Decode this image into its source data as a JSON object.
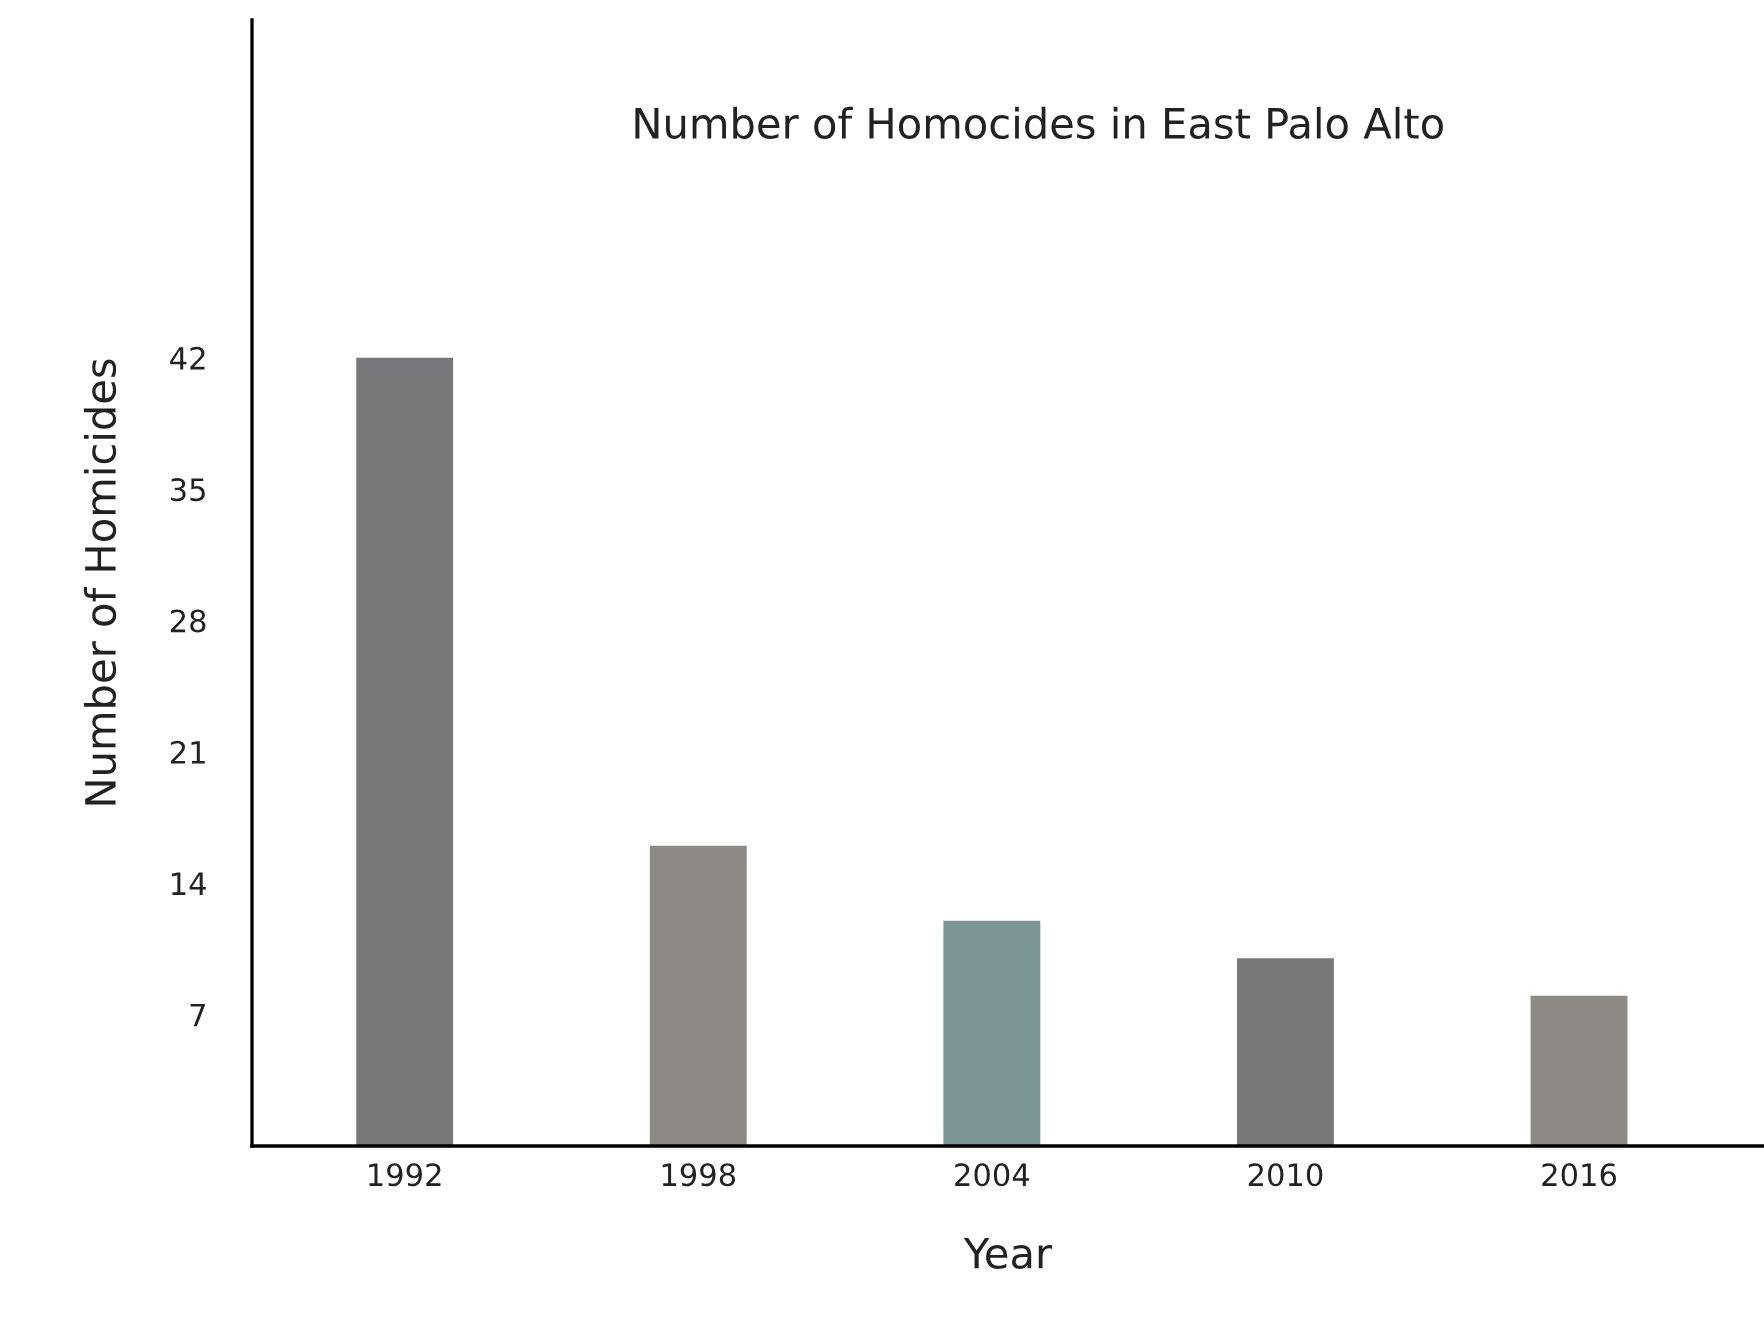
{
  "chart_data": {
    "type": "bar",
    "title": "Number of Homocides in East Palo Alto",
    "xlabel": "Year",
    "ylabel": "Number of Homicides",
    "categories": [
      "1992",
      "1998",
      "2004",
      "2010",
      "2016"
    ],
    "values": [
      42,
      16,
      12,
      10,
      8
    ],
    "colors": [
      "#77787a",
      "#8d8a85",
      "#7a9595",
      "#77787a",
      "#8d8a85"
    ],
    "ylim": [
      0,
      60
    ],
    "yticks": [
      7,
      14,
      21,
      28,
      35,
      42
    ],
    "grid": false,
    "legend": false
  }
}
